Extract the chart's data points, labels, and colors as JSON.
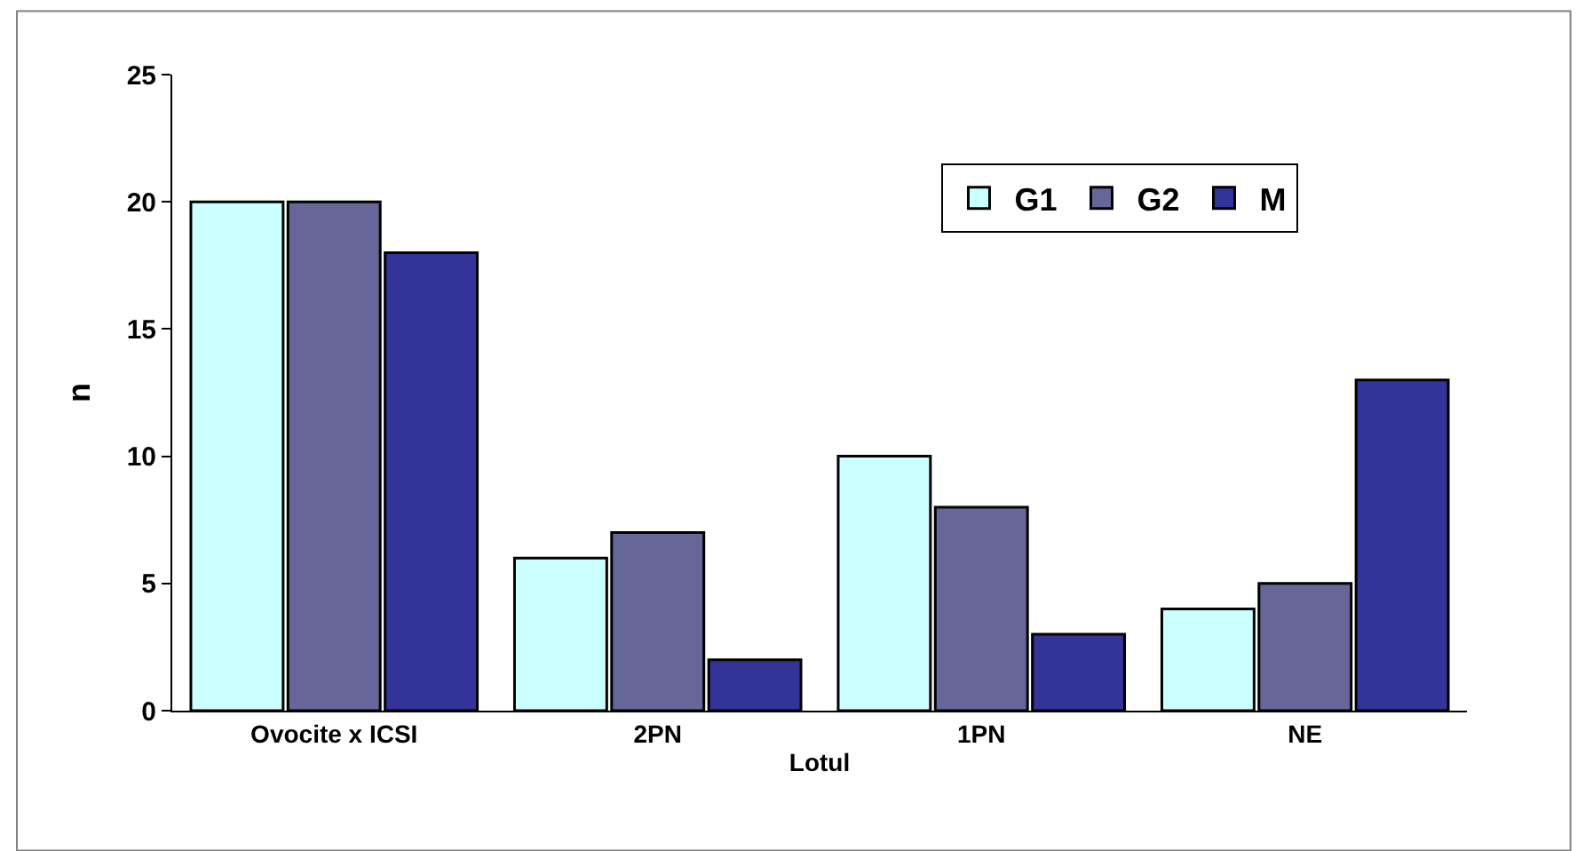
{
  "chart_data": {
    "type": "bar",
    "xlabel": "Lotul",
    "ylabel": "n",
    "categories": [
      "Ovocite x ICSI",
      "2PN",
      "1PN",
      "NE"
    ],
    "series": [
      {
        "name": "G1",
        "color": "#ccffff",
        "values": [
          20,
          6,
          10,
          4
        ]
      },
      {
        "name": "G2",
        "color": "#666699",
        "values": [
          20,
          7,
          8,
          5
        ]
      },
      {
        "name": "M",
        "color": "#333399",
        "values": [
          18,
          2,
          3,
          13
        ]
      }
    ],
    "ylim": [
      0,
      25
    ],
    "yticks": [
      0,
      5,
      10,
      15,
      20,
      25
    ],
    "legend": "top right"
  }
}
